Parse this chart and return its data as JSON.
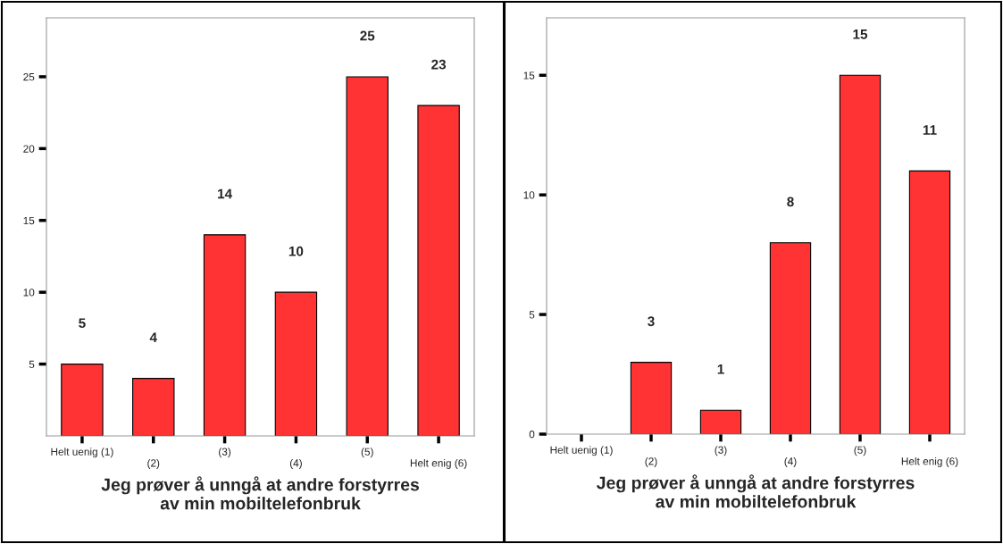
{
  "chart_data": [
    {
      "type": "bar",
      "xlabel": "Jeg prøver å unngå at andre forstyrres\nav min mobiltelefonbruk",
      "categories": [
        "Helt uenig (1)",
        "(2)",
        "(3)",
        "(4)",
        "(5)",
        "Helt enig (6)"
      ],
      "values": [
        5,
        4,
        14,
        10,
        25,
        23
      ],
      "color": "#ff3333",
      "data_labels": true,
      "ylim": [
        0,
        29.1
      ],
      "yticks": [
        5,
        10,
        15,
        20,
        25
      ],
      "grid": false,
      "legend": false
    },
    {
      "type": "bar",
      "xlabel": "Jeg prøver å unngå at andre forstyrres\nav min mobiltelefonbruk",
      "categories": [
        "Helt uenig (1)",
        "(2)",
        "(3)",
        "(4)",
        "(5)",
        "Helt enig (6)"
      ],
      "values": [
        0,
        3,
        1,
        8,
        15,
        11
      ],
      "value_labels": [
        null,
        "3",
        "1",
        "8",
        "15",
        "11"
      ],
      "color": "#ff3333",
      "ylim": [
        0,
        17.4
      ],
      "yticks": [
        0,
        5,
        10,
        15
      ],
      "grid": false,
      "legend": false
    }
  ]
}
